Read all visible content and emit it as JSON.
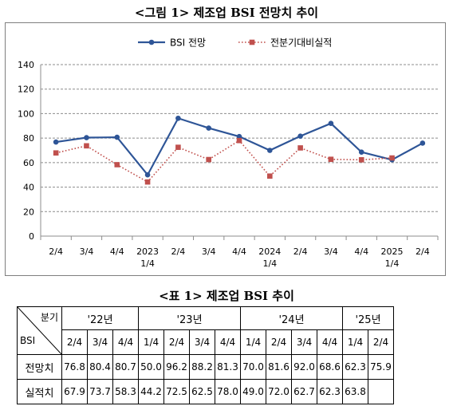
{
  "figure_title": "<그림 1> 제조업 BSI 전망치 추이",
  "table_title": "<표 1> 제조업 BSI 추이",
  "chart_data": {
    "type": "line",
    "categories": [
      "2/4",
      "3/4",
      "4/4",
      "2023 1/4",
      "2/4",
      "3/4",
      "4/4",
      "2024 1/4",
      "2/4",
      "3/4",
      "4/4",
      "2025 1/4",
      "2/4"
    ],
    "category_lines": [
      [
        "2/4"
      ],
      [
        "3/4"
      ],
      [
        "4/4"
      ],
      [
        "2023",
        "1/4"
      ],
      [
        "2/4"
      ],
      [
        "3/4"
      ],
      [
        "4/4"
      ],
      [
        "2024",
        "1/4"
      ],
      [
        "2/4"
      ],
      [
        "3/4"
      ],
      [
        "4/4"
      ],
      [
        "2025",
        "1/4"
      ],
      [
        "2/4"
      ]
    ],
    "series": [
      {
        "name": "BSI 전망",
        "color": "#2e5597",
        "style": "solid",
        "marker": "circle",
        "values": [
          76.8,
          80.4,
          80.7,
          50.0,
          96.2,
          88.2,
          81.3,
          70.0,
          81.6,
          92.0,
          68.6,
          62.3,
          75.9
        ]
      },
      {
        "name": "전분기대비실적",
        "color": "#c0504d",
        "style": "dotted",
        "marker": "square",
        "values": [
          67.9,
          73.7,
          58.3,
          44.2,
          72.5,
          62.5,
          78.0,
          49.0,
          72.0,
          62.7,
          62.3,
          63.8,
          null
        ]
      }
    ],
    "ylim": [
      0,
      140
    ],
    "yticks": [
      "0",
      "20",
      "40",
      "60",
      "80",
      "100",
      "120",
      "140"
    ],
    "grid": "horizontal dashed",
    "legend": "top-center"
  },
  "table": {
    "header_top": "분기",
    "header_bottom": "BSI",
    "years": [
      {
        "label": "'22년",
        "span": 3
      },
      {
        "label": "'23년",
        "span": 4
      },
      {
        "label": "'24년",
        "span": 4
      },
      {
        "label": "'25년",
        "span": 2
      }
    ],
    "quarters": [
      "2/4",
      "3/4",
      "4/4",
      "1/4",
      "2/4",
      "3/4",
      "4/4",
      "1/4",
      "2/4",
      "3/4",
      "4/4",
      "1/4",
      "2/4"
    ],
    "rows": [
      {
        "label": "전망치",
        "values": [
          "76.8",
          "80.4",
          "80.7",
          "50.0",
          "96.2",
          "88.2",
          "81.3",
          "70.0",
          "81.6",
          "92.0",
          "68.6",
          "62.3",
          "75.9"
        ]
      },
      {
        "label": "실적치",
        "values": [
          "67.9",
          "73.7",
          "58.3",
          "44.2",
          "72.5",
          "62.5",
          "78.0",
          "49.0",
          "72.0",
          "62.7",
          "62.3",
          "63.8",
          ""
        ]
      }
    ]
  }
}
